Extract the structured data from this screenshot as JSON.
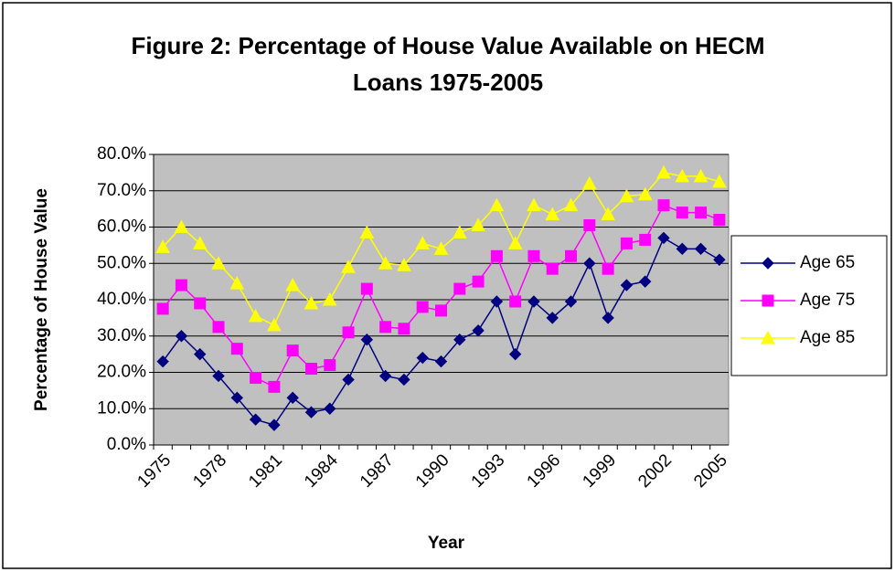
{
  "chart_data": {
    "type": "line",
    "title": "Figure 2: Percentage of House Value Available on HECM Loans 1975-2005",
    "x_label": "Year",
    "y_label": "Percentage of House Value",
    "categories": [
      "1975",
      null,
      null,
      "1978",
      null,
      null,
      "1981",
      null,
      null,
      "1984",
      null,
      null,
      "1987",
      null,
      null,
      "1990",
      null,
      null,
      "1993",
      null,
      null,
      "1996",
      null,
      null,
      "1999",
      null,
      null,
      "2002",
      null,
      null,
      "2005"
    ],
    "series": [
      {
        "name": "Age 65",
        "color": "#000080",
        "marker": "diamond",
        "values": [
          23,
          30,
          25,
          19,
          13,
          7,
          5.5,
          13,
          9,
          10,
          18,
          29,
          19,
          18,
          24,
          23,
          29,
          31.5,
          39.5,
          25,
          39.5,
          35,
          39.5,
          50,
          35,
          44,
          45,
          57,
          54,
          54,
          51
        ]
      },
      {
        "name": "Age 75",
        "color": "#ff00ff",
        "marker": "square",
        "values": [
          37.5,
          44,
          39,
          32.5,
          26.5,
          18.5,
          16,
          26,
          21,
          22,
          31,
          43,
          32.5,
          32,
          38,
          37,
          43,
          45,
          52,
          39.5,
          52,
          48.5,
          52,
          60.5,
          48.5,
          55.5,
          56.5,
          66,
          64,
          64,
          62
        ]
      },
      {
        "name": "Age 85",
        "color": "#ffff00",
        "marker": "triangle",
        "values": [
          54.5,
          60,
          55.5,
          50,
          44.5,
          35.5,
          33,
          44,
          39,
          40,
          49,
          58.5,
          50,
          49.5,
          55.5,
          54,
          58.5,
          60.5,
          66,
          55.5,
          66,
          63.5,
          66,
          72,
          63.5,
          68.5,
          69,
          75,
          74,
          74,
          72.5
        ]
      }
    ],
    "ylim": [
      0,
      80
    ],
    "yticks": [
      {
        "value": 0,
        "label": "0.0%"
      },
      {
        "value": 10,
        "label": "10.0%"
      },
      {
        "value": 20,
        "label": "20.0%"
      },
      {
        "value": 30,
        "label": "30.0%"
      },
      {
        "value": 40,
        "label": "40.0%"
      },
      {
        "value": 50,
        "label": "50.0%"
      },
      {
        "value": 60,
        "label": "60.0%"
      },
      {
        "value": 70,
        "label": "70.0%"
      },
      {
        "value": 80,
        "label": "80.0%"
      }
    ],
    "grid": true,
    "plot_background": "#c0c0c0",
    "legend": "right"
  }
}
